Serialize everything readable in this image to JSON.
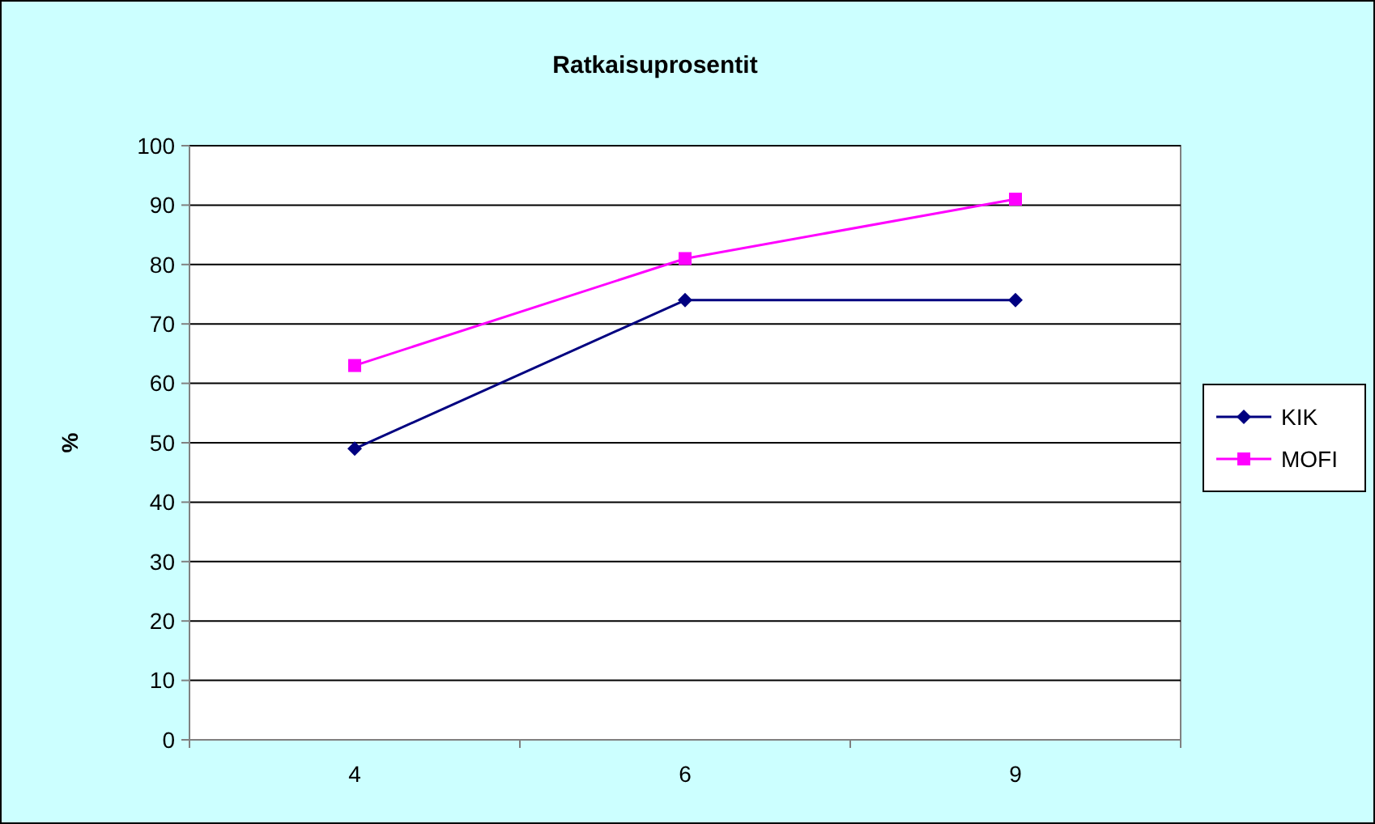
{
  "chart_data": {
    "type": "line",
    "title": "Ratkaisuprosentit",
    "ylabel": "%",
    "categories": [
      "4",
      "6",
      "9"
    ],
    "series": [
      {
        "name": "KIK",
        "color": "#000080",
        "marker": "diamond",
        "values": [
          49,
          74,
          74
        ]
      },
      {
        "name": "MOFI",
        "color": "#ff00ff",
        "marker": "square",
        "values": [
          63,
          81,
          91
        ]
      }
    ],
    "ylim": [
      0,
      100
    ],
    "yticks": [
      0,
      10,
      20,
      30,
      40,
      50,
      60,
      70,
      80,
      90,
      100
    ],
    "grid": "y",
    "legend": "right"
  }
}
